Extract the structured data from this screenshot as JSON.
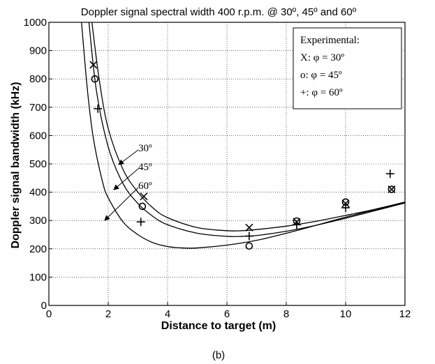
{
  "chart_data": {
    "type": "line",
    "title": "Doppler signal spectral width 400 r.p.m. @ 30º, 45º and 60º",
    "xlabel": "Distance to target (m)",
    "ylabel": "Doppler signal bandwidth (kHz)",
    "caption": "(b)",
    "xlim": [
      0,
      12
    ],
    "ylim": [
      0,
      1000
    ],
    "xticks": [
      "0",
      "2",
      "4",
      "6",
      "8",
      "10",
      "12"
    ],
    "yticks": [
      "0",
      "100",
      "200",
      "300",
      "400",
      "500",
      "600",
      "700",
      "800",
      "900",
      "1000"
    ],
    "grid": true,
    "legend": {
      "position": "top-right",
      "title": "Experimental:",
      "entries": [
        "X: φ = 30º",
        "o: φ = 45º",
        "+: φ = 60º"
      ]
    },
    "series": [
      {
        "name": "30º",
        "x": [
          1.45,
          1.7,
          2.0,
          2.5,
          3.0,
          3.5,
          4.0,
          5.0,
          6.0,
          6.5,
          7.0,
          8.0,
          9.0,
          10.0,
          11.0,
          12.0
        ],
        "y": [
          1000,
          795,
          625,
          480,
          400,
          345,
          310,
          275,
          264,
          264,
          268,
          280,
          297,
          318,
          340,
          365
        ]
      },
      {
        "name": "45º",
        "x": [
          1.35,
          1.6,
          2.0,
          2.5,
          3.0,
          3.5,
          4.0,
          5.0,
          6.0,
          6.5,
          7.0,
          8.0,
          9.0,
          10.0,
          11.0,
          12.0
        ],
        "y": [
          1000,
          760,
          560,
          430,
          360,
          315,
          285,
          255,
          244,
          244,
          247,
          262,
          283,
          308,
          335,
          362
        ]
      },
      {
        "name": "60º",
        "x": [
          1.1,
          1.3,
          1.5,
          1.8,
          2.0,
          2.5,
          3.0,
          3.5,
          4.0,
          4.5,
          5.0,
          6.0,
          7.0,
          8.0,
          9.0,
          10.0,
          11.0,
          12.0
        ],
        "y": [
          1000,
          760,
          590,
          440,
          380,
          295,
          250,
          222,
          208,
          203,
          203,
          213,
          230,
          255,
          283,
          312,
          338,
          362
        ]
      }
    ],
    "experimental": {
      "X": {
        "x": [
          1.5,
          3.2,
          6.75,
          8.35,
          10.0,
          11.55
        ],
        "y": [
          850,
          385,
          275,
          295,
          360,
          410
        ]
      },
      "o": {
        "x": [
          1.55,
          3.15,
          6.75,
          8.35,
          10.0,
          11.55
        ],
        "y": [
          800,
          350,
          210,
          298,
          365,
          410
        ]
      },
      "+": {
        "x": [
          1.65,
          3.1,
          6.75,
          8.35,
          10.0,
          11.5
        ],
        "y": [
          695,
          295,
          245,
          285,
          345,
          465
        ]
      }
    },
    "annotations": [
      {
        "text": "30º",
        "series": "30º"
      },
      {
        "text": "45º",
        "series": "45º"
      },
      {
        "text": "60º",
        "series": "60º"
      }
    ]
  }
}
